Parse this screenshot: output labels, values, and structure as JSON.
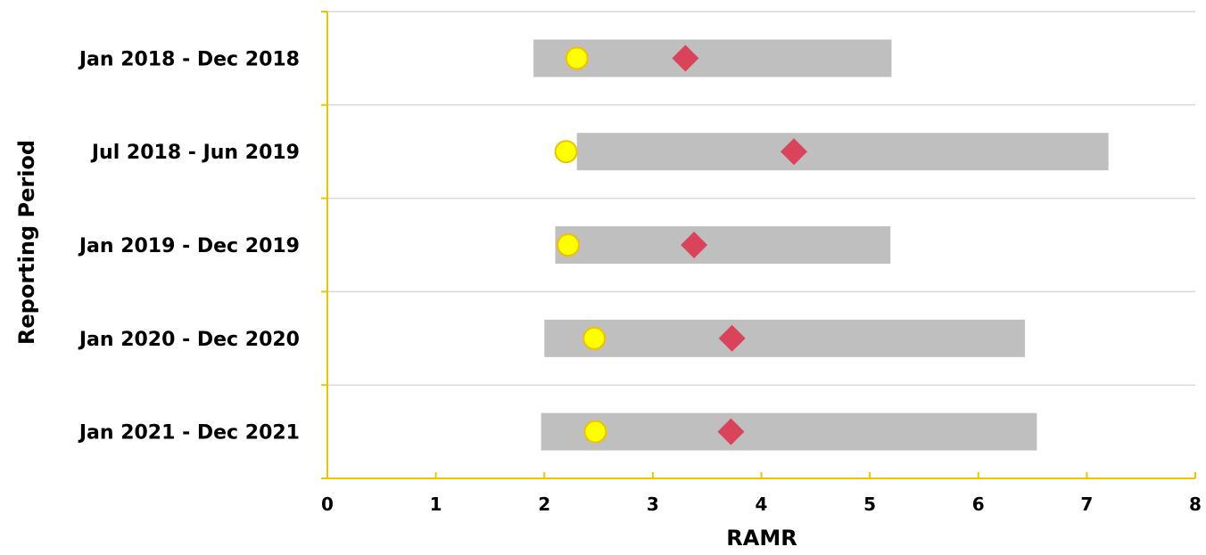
{
  "chart_data": {
    "type": "range-bar",
    "xlabel": "RAMR",
    "ylabel": "Reporting Period",
    "xlim": [
      0,
      8
    ],
    "xticks": [
      "0",
      "1",
      "2",
      "3",
      "4",
      "5",
      "6",
      "7",
      "8"
    ],
    "categories": [
      "Jan 2018 - Dec 2018",
      "Jul 2018 - Jun 2019",
      "Jan 2019 - Dec 2019",
      "Jan 2020 - Dec 2020",
      "Jan 2021 - Dec 2021"
    ],
    "range_bars": [
      {
        "low": 1.9,
        "high": 5.2
      },
      {
        "low": 2.3,
        "high": 7.2
      },
      {
        "low": 2.1,
        "high": 5.19
      },
      {
        "low": 2.0,
        "high": 6.43
      },
      {
        "low": 1.97,
        "high": 6.54
      }
    ],
    "circle_values": [
      2.3,
      2.2,
      2.22,
      2.46,
      2.47
    ],
    "diamond_values": [
      3.3,
      4.3,
      3.38,
      3.73,
      3.72
    ],
    "grid": true,
    "legend": "none",
    "colors": {
      "range": "#bfbfbf",
      "circle": "#ffff00",
      "circle_stroke": "#f0c000",
      "diamond": "#d9445a",
      "axis": "#f2c200",
      "grid": "#d9d9d9"
    }
  }
}
